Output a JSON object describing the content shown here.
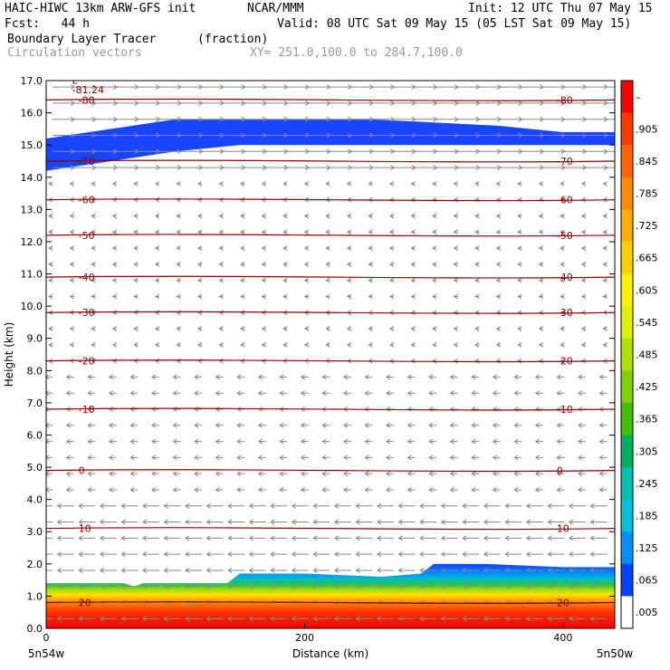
{
  "header": {
    "model": "HAIC-HIWC 13km ARW-GFS init",
    "org": "NCAR/MMM",
    "init": "Init: 12 UTC Thu 07 May 15",
    "fcst": "Fcst:   44 h",
    "valid": "Valid: 08 UTC Sat 09 May 15 (05 LST Sat 09 May 15)",
    "field": "Boundary Layer Tracer",
    "field_units": "(fraction)",
    "overlay": "Circulation vectors",
    "xy": "XY= 251.0,100.0 to 284.7,100.0"
  },
  "axes": {
    "ylabel": "Height (km)",
    "xlabel": "Distance (km)",
    "left_point": "5n54w",
    "right_point": "5n50w"
  },
  "colorbar": {
    "labels": [
      "–",
      ".905",
      ".845",
      ".785",
      ".725",
      ".665",
      ".605",
      ".545",
      ".485",
      ".425",
      ".365",
      ".305",
      ".245",
      ".185",
      ".125",
      ".065",
      ".005"
    ],
    "colors": [
      "#ff0000",
      "#ff3a00",
      "#ff6400",
      "#ff8c00",
      "#ffae00",
      "#ffd000",
      "#fff000",
      "#e0f000",
      "#b0e000",
      "#80d000",
      "#40c000",
      "#00b060",
      "#00c0b0",
      "#00c0e0",
      "#0090ff",
      "#0040ff",
      "#ffffff"
    ]
  },
  "chart_data": {
    "type": "heatmap",
    "x_range_km": [
      0,
      440
    ],
    "x_ticks": [
      "0",
      "200",
      "400"
    ],
    "x_tick_values": [
      0,
      200,
      400
    ],
    "y_range_km": [
      0,
      17
    ],
    "y_ticks": [
      "0.0",
      "1.0",
      "2.0",
      "3.0",
      "4.0",
      "5.0",
      "6.0",
      "7.0",
      "8.0",
      "9.0",
      "10.0",
      "11.0",
      "12.0",
      "13.0",
      "14.0",
      "15.0",
      "16.0",
      "17.0"
    ],
    "y_tick_values": [
      0,
      1,
      2,
      3,
      4,
      5,
      6,
      7,
      8,
      9,
      10,
      11,
      12,
      13,
      14,
      15,
      16,
      17
    ],
    "upper_tracer_layer": {
      "x_km": [
        0,
        50,
        100,
        150,
        200,
        250,
        300,
        350,
        400,
        440
      ],
      "bottom_km": [
        14.2,
        14.5,
        14.8,
        15.0,
        15.0,
        15.0,
        15.0,
        15.0,
        15.0,
        15.0
      ],
      "top_km": [
        15.2,
        15.5,
        15.8,
        15.8,
        15.8,
        15.8,
        15.7,
        15.6,
        15.4,
        15.4
      ]
    },
    "boundary_layer_top_km": {
      "x_km": [
        0,
        60,
        68,
        75,
        140,
        150,
        200,
        260,
        290,
        300,
        340,
        400,
        440
      ],
      "top_km": [
        1.4,
        1.4,
        1.3,
        1.4,
        1.4,
        1.7,
        1.7,
        1.6,
        1.7,
        2.0,
        2.0,
        1.9,
        1.9
      ]
    },
    "temperature_contours": [
      {
        "label": "-81.24",
        "kind": "min"
      },
      {
        "label": "-80",
        "y_km": 16.4
      },
      {
        "label": "-70",
        "y_km": 14.5
      },
      {
        "label": "-60",
        "y_km": 13.3
      },
      {
        "label": "-50",
        "y_km": 12.2
      },
      {
        "label": "-40",
        "y_km": 10.9
      },
      {
        "label": "-30",
        "y_km": 9.8
      },
      {
        "label": "-20",
        "y_km": 8.3
      },
      {
        "label": "-10",
        "y_km": 6.8
      },
      {
        "label": "0",
        "y_km": 4.9
      },
      {
        "label": "10",
        "y_km": 3.1
      },
      {
        "label": "20",
        "y_km": 0.8
      }
    ],
    "l_marker": "L"
  }
}
